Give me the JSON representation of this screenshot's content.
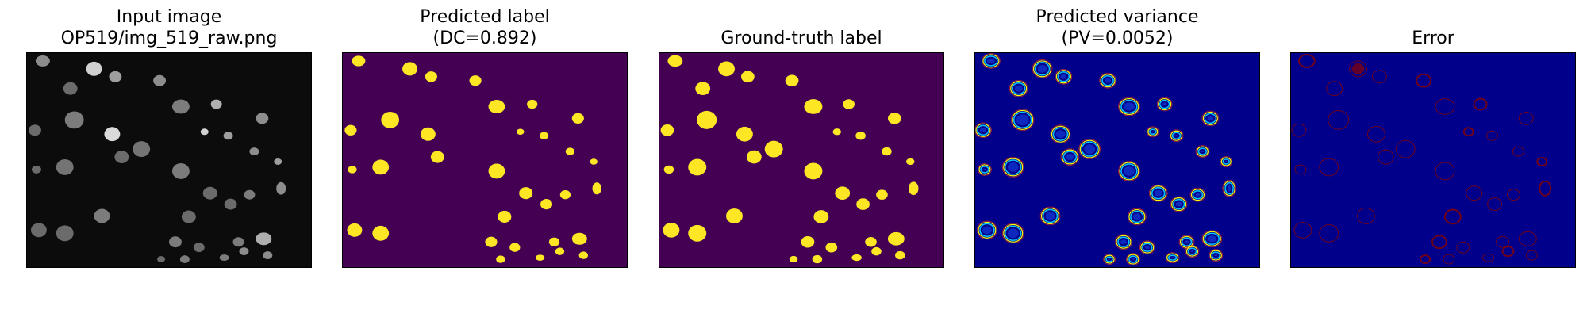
{
  "panels": [
    {
      "title_line1": "Input image",
      "title_line2": "OP519/img_519_raw.png"
    },
    {
      "title_line1": "Predicted label",
      "title_line2": "(DC=0.892)"
    },
    {
      "title_line1": "Ground-truth label"
    },
    {
      "title_line1": "Predicted variance",
      "title_line2": "(PV=0.0052)"
    },
    {
      "title_line1": "Error"
    }
  ],
  "colors": {
    "input_bg": "#0c0c0c",
    "label_bg": "#440154",
    "label_fg": "#fde725",
    "variance_bg": "#00008b",
    "error_bg": "#00008b",
    "error_fg": "#8b0000"
  }
}
